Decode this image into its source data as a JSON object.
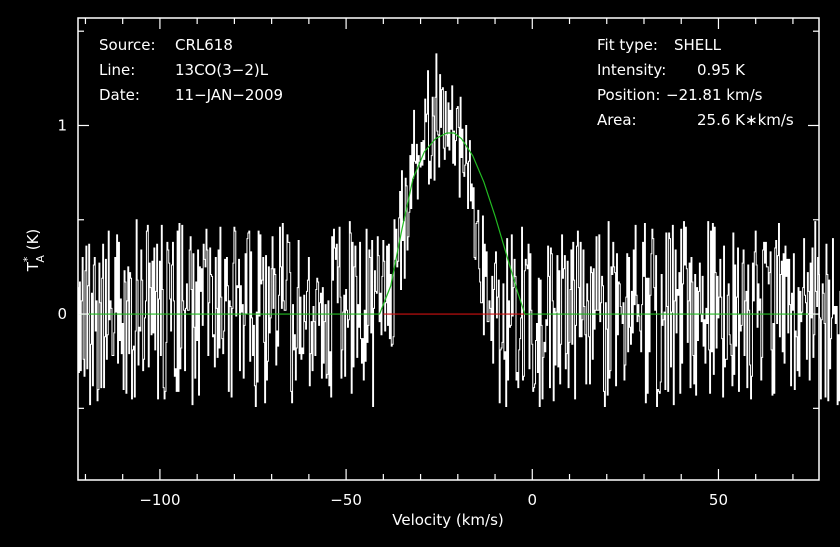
{
  "colors": {
    "background": "#000000",
    "frame": "#ffffff",
    "spectrum": "#ffffff",
    "fit": "#22bb22",
    "fit_window": "#cc1111"
  },
  "chart_data": {
    "type": "line",
    "xlabel": "Velocity (km/s)",
    "ylabel": {
      "base": "T",
      "sup": "*",
      "sub": "A",
      "unit": " (K)"
    },
    "xlim": [
      -122,
      77
    ],
    "ylim": [
      -0.88,
      1.57
    ],
    "xticks": [
      {
        "value": -100,
        "label": "−100"
      },
      {
        "value": -50,
        "label": "−50"
      },
      {
        "value": 0,
        "label": "0"
      },
      {
        "value": 50,
        "label": "50"
      }
    ],
    "yticks": [
      {
        "value": 0,
        "label": "0"
      },
      {
        "value": 1,
        "label": "1"
      }
    ],
    "info_left": [
      {
        "key": "Source:",
        "value": "CRL618"
      },
      {
        "key": "Line:",
        "value": "13CO(3−2)L"
      },
      {
        "key": "Date:",
        "value": "11−JAN−2009"
      }
    ],
    "info_right": [
      {
        "key": "Fit type:",
        "value": "SHELL"
      },
      {
        "key": "Intensity:",
        "value": "0.95 K"
      },
      {
        "key": "Position:",
        "value": "−21.81 km/s"
      },
      {
        "key": "Area:",
        "value": "25.6 K∗km/s"
      }
    ],
    "fit": {
      "type": "shell",
      "center": -21.81,
      "intensity": 0.95,
      "x": [
        -122,
        -41,
        -38,
        -35,
        -32,
        -29,
        -26,
        -23,
        -21,
        -19,
        -16,
        -13,
        -10,
        -7,
        -4,
        -2,
        77
      ],
      "y": [
        0,
        0,
        0.15,
        0.45,
        0.72,
        0.86,
        0.93,
        0.96,
        0.96,
        0.93,
        0.84,
        0.7,
        0.52,
        0.32,
        0.12,
        0,
        0
      ]
    },
    "fit_window": {
      "x": [
        -40,
        -2
      ],
      "y": 0
    },
    "spectrum": {
      "x_start": -122,
      "x_step": 0.25,
      "values": [
        0.14,
        -0.31,
        0.17,
        -0.3,
        0.07,
        0.3,
        -0.24,
        -0.33,
        0.23,
        0.36,
        -0.29,
        0.15,
        0.37,
        -0.48,
        -0.16,
        0.11,
        -0.38,
        0.26,
        0.3,
        -0.09,
        0.07,
        -0.46,
        -0.4,
        0.27,
        0.06,
        -0.39,
        0.19,
        0.37,
        -0.39,
        -0.12,
        0.29,
        -0.24,
        -0.11,
        0.44,
        -0.03,
        0.07,
        0.03,
        -0.22,
        -0.22,
        -0.1,
        0.3,
        0.01,
        0.42,
        -0.26,
        0.38,
        -0.14,
        0.08,
        -0.21,
        -0.05,
        -0.4,
        0.23,
        0.17,
        -0.42,
        0.07,
        0.25,
        -0.21,
        0.22,
        0.19,
        -0.45,
        -0.19,
        -0.17,
        -0.44,
        -0.09,
        0.5,
        0.18,
        -0.27,
        -0.07,
        -0.09,
        0.34,
        0.18,
        -0.3,
        -0.24,
        -0.02,
        0.07,
        0.44,
        0.47,
        -0.28,
        0.27,
        0.14,
        -0.11,
        0.28,
        -0.1,
        0.35,
        -0.19,
        0.12,
        0.37,
        -0.45,
        0.08,
        0.28,
        -0.22,
        0.47,
        0.13,
        -0.39,
        -0.45,
        -0.41,
        -0.15,
        0.38,
        0.34,
        0.27,
        0.08,
        -0.09,
        0.26,
        0.38,
        0.07,
        -0.33,
        -0.29,
        -0.41,
        0.44,
        -0.41,
        0.48,
        -0.29,
        -0.18,
        0.47,
        0.07,
        0.02,
        -0.3,
        0.03,
        0.16,
        0.02,
        0.02,
        0.34,
        0.41,
        0.13,
        -0.48,
        0.32,
        -0.07,
        -0.34,
        0.17,
        -0.14,
        0.34,
        -0.43,
        0.25,
        0.12,
        0.24,
        -0.06,
        0.37,
        0.29,
        0.25,
        0.45,
        0.34,
        -0.22,
        0.06,
        0.35,
        0.21,
        0.2,
        -0.12,
        -0.11,
        -0.28,
        0.3,
        0.03,
        -0.23,
        0.34,
        -0.18,
        0.46,
        0.09,
        -0.13,
        -0.21,
        -0.09,
        0.29,
        0.07,
        0.3,
        0.15,
        -0.41,
        0.07,
        0.04,
        -0.44,
        0.03,
        0.27,
        0.46,
        0.44,
        -0.01,
        0.15,
        0.14,
        0.29,
        -0.3,
        0.15,
        0.01,
        0.05,
        -0.34,
        -0.06,
        0.32,
        0.0,
        0.4,
        0.43,
        0.44,
        -0.25,
        0.33,
        -0.02,
        -0.22,
        -0.06,
        -0.38,
        -0.49,
        0.01,
        -0.36,
        0.44,
        -0.01,
        0.42,
        0.16,
        0.18,
        0.3,
        -0.15,
        -0.47,
        0.31,
        -0.35,
        -0.25,
        0.25,
        -0.1,
        -0.02,
        0.24,
        0.41,
        0.03,
        0.24,
        0.21,
        -0.27,
        -0.09,
        -0.17,
        0.1,
        0.46,
        0.25,
        0.03,
        0.48,
        0.07,
        0.02,
        0.02,
        0.18,
        0.42,
        0.38,
        0.38,
        0.22,
        -0.41,
        -0.47,
        0.05,
        -0.19,
        -0.11,
        -0.35,
        -0.18,
        0.14,
        0.39,
        -0.21,
        0.09,
        -0.24,
        -0.18,
        -0.21,
        0.1,
        -0.04,
        -0.08,
        0.12,
        0.18,
        0.3,
        -0.38,
        -0.21,
        -0.04,
        -0.3,
        0.04,
        -0.04,
        -0.22,
        0.13,
        0.19,
        0.17,
        -0.06,
        0.06,
        0.11,
        -0.34,
        0.14,
        -0.26,
        -0.04,
        0.05,
        -0.34,
        -0.32,
        0.07,
        -0.38,
        -0.2,
        -0.44,
        0.41,
        0.18,
        0.45,
        0.35,
        0.29,
        0.37,
        0.06,
        0.25,
        0.46,
        0.09,
        -0.34,
        -0.19,
        0.01,
        0.1,
        -0.33,
        0.13,
        0.02,
        -0.07,
        -0.03,
        0.49,
        0.43,
        -0.42,
        0.38,
        -0.28,
        0.25,
        0.36,
        0.2,
        -0.23,
        0.05,
        -0.07,
        0.38,
        -0.13,
        -0.26,
        -0.13,
        -0.35,
        0.02,
        -0.25,
        0.45,
        -0.15,
        -0.06,
        0.34,
        0.3,
        -0.1,
        0.39,
        -0.49,
        0.03,
        0.23,
        0.12,
        0.11,
        0.41,
        0.31,
        -0.04,
        0.11,
        -0.11,
        0.2,
        0.39,
        0.28,
        -0.09,
        0.06,
        0.36,
        -0.06,
        0.37,
        -0.13,
        0.21,
        -0.17,
        -0.16,
        -0.12,
        0.5,
        0.29,
        0.45,
        0.25,
        0.28,
        0.51,
        0.65,
        0.13,
        0.76,
        0.39,
        0.49,
        0.19,
        0.72,
        0.68,
        0.34,
        0.41,
        0.54,
        0.84,
        0.56,
        0.9,
        0.72,
        1.08,
        0.81,
        0.8,
        0.9,
        0.61,
        0.84,
        0.81,
        0.78,
        0.91,
        0.79,
        0.92,
        0.82,
        1.14,
        1.02,
        1.06,
        1.29,
        0.69,
        0.81,
        0.72,
        0.84,
        1.15,
        1.05,
        0.71,
        1.15,
        1.38,
        0.97,
        0.95,
        0.78,
        1.27,
        0.99,
        1.19,
        1.2,
        0.88,
        0.82,
        1.18,
        0.95,
        0.89,
        1.12,
        0.87,
        1.08,
        0.98,
        1.21,
        0.8,
        0.97,
        0.79,
        0.92,
        1.09,
        1.1,
        0.99,
        0.62,
        1.15,
        0.83,
        0.98,
        0.75,
        0.73,
        0.79,
        1.0,
        0.8,
        0.56,
        0.81,
        0.92,
        0.6,
        0.69,
        0.56,
        0.67,
        0.3,
        0.29,
        0.48,
        0.49,
        0.55,
        0.24,
        0.17,
        0.06,
        0.06,
        0.52,
        -0.11,
        0.37,
        0.2,
        0.33,
        -0.04,
        -0.04,
        0.07,
        0.03,
        -0.14,
        0.2,
        -0.26,
        0.13,
        0.27,
        0.33,
        -0.02,
        0.09,
        0.18,
        -0.47,
        -0.19,
        -0.18,
        -0.15,
        0.16,
        -0.24,
        -0.2,
        -0.49,
        0.4,
        -0.35,
        0.07,
        -0.07,
        -0.06,
        0.42,
        -0.01,
        0.14,
        0.29,
        0.2,
        -0.35,
        -0.31,
        -0.39,
        -0.19,
        -0.13,
        -0.02,
        0.46,
        -0.35,
        -0.33,
        0.23,
        0.29,
        0.26,
        0.24,
        0.37,
        -0.29,
        0.32,
        0.02,
        -0.16,
        -0.41,
        -0.39,
        -0.37,
        -0.14,
        -0.05,
        -0.31,
        0.19,
        -0.49,
        0.18,
        -0.06,
        -0.45,
        -0.23,
        -0.15,
        -0.2,
        -0.03,
        -0.06,
        0.36,
        0.2,
        -0.39,
        0.35,
        0.32,
        0.07,
        -0.46,
        0.03,
        -0.27,
        0.01,
        0.31,
        -0.28,
        0.23,
        -0.37,
        -0.16,
        0.42,
        0.19,
        0.24,
        0.31,
        -0.29,
        -0.21,
        0.28,
        -0.39,
        -0.15,
        0.13,
        0.34,
        -0.16,
        0.38,
        0.18,
        -0.45,
        -0.06,
        0.36,
        0.44,
        0.14,
        -0.12,
        0.38,
        -0.12,
        -0.03,
        0.34,
        0.04,
        -0.11,
        -0.37,
        0.16,
        0.07,
        -0.12,
        -0.37,
        0.25,
        0.22,
        -0.24,
        0.24,
        -0.08,
        0.02,
        0.41,
        0.02,
        0.02,
        0.42,
        -0.04,
        0.06,
        0.2,
        0.15,
        -0.41,
        -0.49,
        0.06,
        -0.08,
        -0.43,
        0.49,
        -0.34,
        -0.3,
        0.25,
        0.21,
        0.38,
        0.25,
        0.22,
        -0.38,
        0.32,
        -0.11,
        0.17,
        0.16,
        0.04,
        0.0,
        -0.05,
        0.06,
        -0.35,
        -0.27,
        0.09,
        0.32,
        -0.2,
        0.3,
        -0.07,
        -0.16,
        0.12,
        -0.1,
        0.34,
        0.05,
        0.47,
        0.1,
        -0.04,
        0.05,
        -0.01,
        -0.09,
        -0.2,
        0.05,
        0.38,
        0.2,
        0.48,
        -0.47,
        0.19,
        -0.42,
        0.19,
        -0.2,
        0.1,
        0.32,
        0.45,
        0.4,
        0.14,
        0.02,
        0.31,
        -0.49,
        -0.4,
        -0.41,
        -0.42,
        -0.36,
        0.21,
        -0.06,
        -0.03,
        0.01,
        -0.4,
        0.43,
        0.04,
        -0.41,
        0.43,
        0.4,
        -0.28,
        0.01,
        0.47,
        -0.48,
        0.07,
        0.34,
        -0.1,
        0.13,
        0.1,
        0.22,
        -0.42,
        0.45,
        -0.26,
        0.16,
        0.49,
        0.26,
        0.46,
        0.24,
        -0.15,
        0.07,
        0.27,
        -0.39,
        0.3,
        0.17,
        -0.22,
        -0.37,
        0.21,
        -0.43,
        0.14,
        -0.14,
        0.12,
        0.27,
        0.0,
        -0.04,
        0.2,
        -0.17,
        -0.03,
        -0.26,
        0.03,
        -0.05,
        0.49,
        -0.19,
        -0.42,
        0.44,
        -0.2,
        0.48,
        -0.32,
        0.46,
        0.22,
        -0.18,
        0.2,
        -0.02,
        0.09,
        0.29,
        0.09,
        -0.13,
        -0.44,
        0.36,
        -0.28,
        -0.24,
        -0.24,
        0.1,
        0.16,
        -0.11,
        -0.16,
        -0.22,
        -0.38,
        0.43,
        -0.32,
        0.26,
        -0.17,
        0.09,
        0.35,
        -0.41,
        0.0,
        -0.09,
        -0.06,
        0.27,
        0.34,
        -0.22,
        0.07,
        0.12,
        -0.39,
        0.26,
        0.02,
        -0.27,
        -0.45,
        -0.33,
        0.27,
        0.07,
        0.33,
        0.44,
        0.26,
        -0.07,
        0.16,
        0.02,
        0.08,
        -0.35,
        -0.23,
        0.34,
        0.38,
        0.27,
        0.38,
        0.25,
        0.25,
        0.16,
        0.22,
        0.33,
        -0.19,
        -0.43,
        -0.05,
        -0.42,
        0.35,
        0.39,
        -0.05,
        0.31,
        0.48,
        -0.12,
        0.21,
        0.28,
        -0.2,
        0.32,
        -0.26,
        0.36,
        0.2,
        0.29,
        -0.1,
        0.29,
        0.05,
        -0.38,
        0.11,
        0.02,
        0.32,
        -0.4,
        -0.09,
        -0.12,
        -0.3,
        0.14,
        -0.33,
        0.12,
        -0.04,
        0.01,
        0.14,
        0.4,
        0.1,
        0.06,
        -0.24,
        0.22,
        0.12,
        -0.35,
        0.27,
        -0.02,
        0.35,
        -0.23,
        -0.11,
        0.49,
        0.12,
        0.04,
        0.3,
        0.21,
        -0.02,
        -0.45,
        -0.03,
        0.16,
        0.11,
        -0.05,
        -0.44,
        0.37,
        0.21,
        -0.46,
        0.18,
        -0.29,
        -0.13,
        -0.02,
        0.4,
        0.0,
        0.04,
        -0.05,
        0.04,
        -0.48,
        -0.11,
        -0.46,
        0.12,
        0.26,
        0.07,
        0.46,
        -0.26,
        -0.02,
        0.19,
        0.29,
        0.31,
        0.13,
        0.49,
        -0.08,
        0.07,
        0.17,
        -0.33,
        -0.36,
        -0.31,
        0.24,
        0.47,
        0.17,
        -0.43,
        -0.13,
        -0.22,
        0.19,
        0.08,
        0.44,
        0.25,
        -0.26,
        -0.31,
        0.41
      ]
    }
  }
}
